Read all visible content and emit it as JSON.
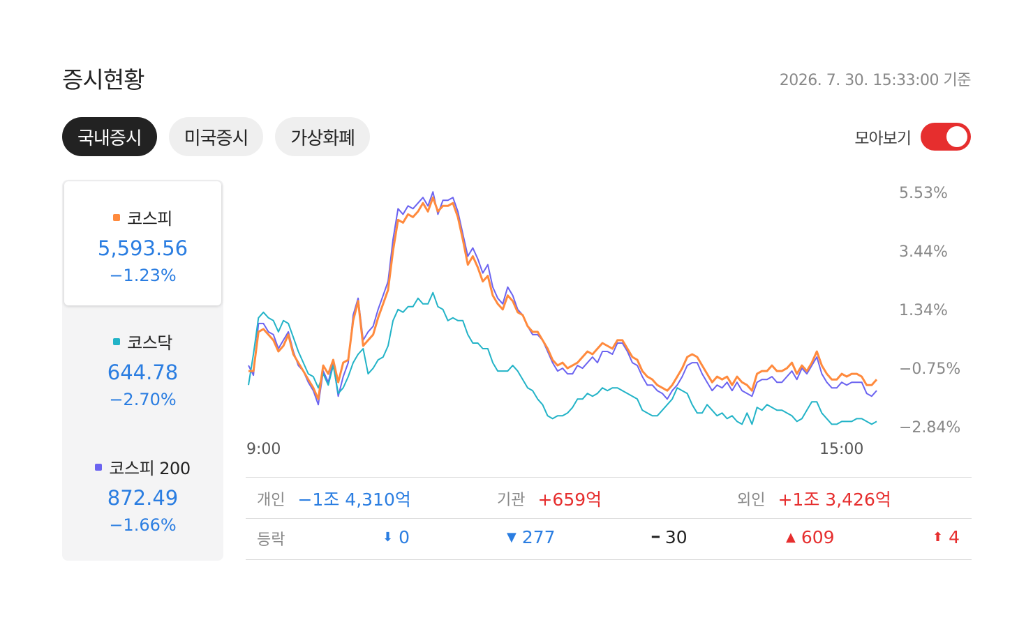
{
  "header": {
    "title": "증시현황",
    "timestamp": "2026. 7. 30. 15:33:00 기준"
  },
  "tabs": [
    {
      "label": "국내증시",
      "active": true
    },
    {
      "label": "미국증시",
      "active": false
    },
    {
      "label": "가상화폐",
      "active": false
    }
  ],
  "toggle": {
    "label": "모아보기",
    "on": true
  },
  "indices": [
    {
      "name": "코스피",
      "value": "5,593.56",
      "change": "−1.23%",
      "color": "#ff8a3d",
      "selected": true
    },
    {
      "name": "코스닥",
      "value": "644.78",
      "change": "−2.70%",
      "color": "#22b3c7",
      "selected": false
    },
    {
      "name": "코스피 200",
      "value": "872.49",
      "change": "−1.66%",
      "color": "#6b63f0",
      "selected": false
    }
  ],
  "investors": [
    {
      "label": "개인",
      "value": "−1조 4,310억",
      "color": "blue"
    },
    {
      "label": "기관",
      "value": "+659억",
      "color": "red"
    },
    {
      "label": "외인",
      "value": "+1조 3,426억",
      "color": "red"
    }
  ],
  "advance_decline": {
    "label": "등락",
    "items": [
      {
        "icon": "down-arrow-icon",
        "symbol": "⬇",
        "value": "0",
        "color": "blue"
      },
      {
        "icon": "down-triangle-icon",
        "symbol": "▼",
        "value": "277",
        "color": "blue"
      },
      {
        "icon": "dash-icon",
        "symbol": "━",
        "value": "30",
        "color": "black"
      },
      {
        "icon": "up-triangle-icon",
        "symbol": "▲",
        "value": "609",
        "color": "red"
      },
      {
        "icon": "up-arrow-icon",
        "symbol": "⬆",
        "value": "4",
        "color": "red"
      }
    ]
  },
  "chart_data": {
    "type": "line",
    "title": "",
    "xlabel": "",
    "ylabel": "",
    "x_tick_labels": [
      "9:00",
      "15:00"
    ],
    "x_range": [
      "9:00",
      "15:33"
    ],
    "y_tick_labels": [
      "5.53%",
      "3.44%",
      "1.34%",
      "−0.75%",
      "−2.84%"
    ],
    "y_ticks": [
      5.53,
      3.44,
      1.34,
      -0.75,
      -2.84
    ],
    "ylim": [
      -2.84,
      5.53
    ],
    "grid": false,
    "legend": "none",
    "series": [
      {
        "name": "코스피 200",
        "color": "#6b63f0",
        "values": [
          -0.6,
          -0.95,
          0.9,
          0.9,
          0.6,
          0.5,
          0.0,
          0.3,
          0.6,
          -0.1,
          -0.6,
          -0.8,
          -1.2,
          -1.5,
          -2.0,
          -0.8,
          -1.2,
          -0.5,
          -1.7,
          -1.0,
          -0.5,
          1.2,
          1.8,
          0.3,
          0.6,
          0.8,
          1.4,
          1.9,
          2.4,
          3.9,
          5.0,
          4.8,
          5.1,
          5.0,
          5.2,
          5.4,
          5.1,
          5.6,
          4.8,
          5.3,
          5.3,
          5.4,
          4.9,
          4.1,
          3.3,
          3.6,
          3.2,
          2.7,
          3.0,
          2.2,
          1.8,
          1.6,
          2.2,
          1.9,
          1.4,
          1.2,
          0.8,
          0.5,
          0.5,
          0.3,
          -0.1,
          -0.5,
          -0.8,
          -0.7,
          -0.9,
          -0.9,
          -0.6,
          -0.7,
          -0.5,
          -0.3,
          -0.5,
          -0.1,
          -0.1,
          -0.2,
          0.2,
          0.2,
          -0.1,
          -0.5,
          -0.6,
          -1.0,
          -1.3,
          -1.3,
          -1.5,
          -1.6,
          -1.8,
          -1.5,
          -1.3,
          -1.0,
          -0.6,
          -0.5,
          -0.5,
          -0.9,
          -1.2,
          -1.5,
          -1.3,
          -1.4,
          -1.2,
          -1.5,
          -1.2,
          -1.5,
          -1.6,
          -1.7,
          -1.2,
          -1.1,
          -1.1,
          -1.0,
          -1.2,
          -1.2,
          -1.0,
          -0.8,
          -1.1,
          -0.7,
          -0.9,
          -0.6,
          -0.3,
          -0.9,
          -1.2,
          -1.4,
          -1.4,
          -1.2,
          -1.3,
          -1.2,
          -1.2,
          -1.2,
          -1.6,
          -1.7,
          -1.5
        ]
      },
      {
        "name": "코스닥",
        "color": "#22b3c7",
        "values": [
          -1.3,
          -0.2,
          1.1,
          1.3,
          1.1,
          1.0,
          0.6,
          1.0,
          0.9,
          0.4,
          -0.1,
          -0.5,
          -0.9,
          -1.0,
          -1.4,
          -0.9,
          -1.3,
          -0.6,
          -1.6,
          -1.4,
          -1.0,
          -0.5,
          -0.2,
          0.0,
          -0.9,
          -0.7,
          -0.4,
          -0.3,
          0.1,
          1.0,
          1.4,
          1.3,
          1.5,
          1.5,
          1.8,
          1.6,
          1.6,
          2.0,
          1.5,
          1.4,
          1.0,
          1.1,
          1.0,
          1.0,
          0.5,
          0.2,
          0.2,
          0.0,
          0.0,
          -0.5,
          -0.8,
          -0.8,
          -0.8,
          -0.6,
          -0.8,
          -1.1,
          -1.4,
          -1.5,
          -1.8,
          -2.0,
          -2.4,
          -2.5,
          -2.4,
          -2.4,
          -2.3,
          -2.1,
          -1.8,
          -1.8,
          -1.6,
          -1.7,
          -1.6,
          -1.4,
          -1.5,
          -1.4,
          -1.4,
          -1.5,
          -1.6,
          -1.7,
          -1.8,
          -2.2,
          -2.3,
          -2.4,
          -2.4,
          -2.2,
          -2.0,
          -1.8,
          -1.4,
          -1.5,
          -1.6,
          -2.0,
          -2.3,
          -2.3,
          -2.0,
          -2.2,
          -2.4,
          -2.3,
          -2.5,
          -2.4,
          -2.6,
          -2.7,
          -2.3,
          -2.7,
          -2.1,
          -2.2,
          -2.0,
          -2.1,
          -2.2,
          -2.2,
          -2.3,
          -2.4,
          -2.6,
          -2.5,
          -2.2,
          -1.9,
          -1.9,
          -2.3,
          -2.5,
          -2.7,
          -2.7,
          -2.6,
          -2.6,
          -2.6,
          -2.5,
          -2.5,
          -2.6,
          -2.7,
          -2.6
        ]
      },
      {
        "name": "코스피",
        "color": "#ff8a3d",
        "values": [
          -0.8,
          -0.8,
          0.6,
          0.7,
          0.5,
          0.3,
          -0.1,
          0.1,
          0.5,
          -0.2,
          -0.5,
          -0.8,
          -1.1,
          -1.4,
          -1.8,
          -0.6,
          -0.9,
          -0.4,
          -1.2,
          -0.5,
          -0.4,
          1.0,
          1.7,
          0.1,
          0.3,
          0.5,
          1.1,
          1.6,
          2.1,
          3.5,
          4.6,
          4.5,
          4.8,
          4.7,
          4.9,
          5.2,
          4.9,
          5.4,
          4.9,
          5.1,
          5.1,
          5.2,
          4.7,
          3.9,
          3.0,
          3.3,
          2.9,
          2.4,
          2.6,
          1.9,
          1.6,
          1.4,
          1.9,
          1.7,
          1.3,
          1.2,
          0.8,
          0.6,
          0.6,
          0.3,
          0.0,
          -0.4,
          -0.6,
          -0.5,
          -0.7,
          -0.6,
          -0.5,
          -0.3,
          -0.1,
          -0.2,
          0.0,
          0.2,
          0.1,
          0.0,
          0.3,
          0.3,
          0.0,
          -0.3,
          -0.4,
          -0.8,
          -1.0,
          -1.1,
          -1.3,
          -1.4,
          -1.5,
          -1.3,
          -1.0,
          -0.7,
          -0.3,
          -0.2,
          -0.3,
          -0.6,
          -0.9,
          -1.2,
          -1.0,
          -1.1,
          -1.0,
          -1.3,
          -1.0,
          -1.2,
          -1.3,
          -1.5,
          -0.9,
          -0.8,
          -0.8,
          -0.6,
          -0.8,
          -0.8,
          -0.7,
          -0.5,
          -0.9,
          -0.6,
          -0.8,
          -0.5,
          -0.1,
          -0.6,
          -0.9,
          -1.1,
          -1.1,
          -0.9,
          -1.0,
          -0.9,
          -0.9,
          -1.0,
          -1.3,
          -1.3,
          -1.1
        ]
      }
    ]
  }
}
